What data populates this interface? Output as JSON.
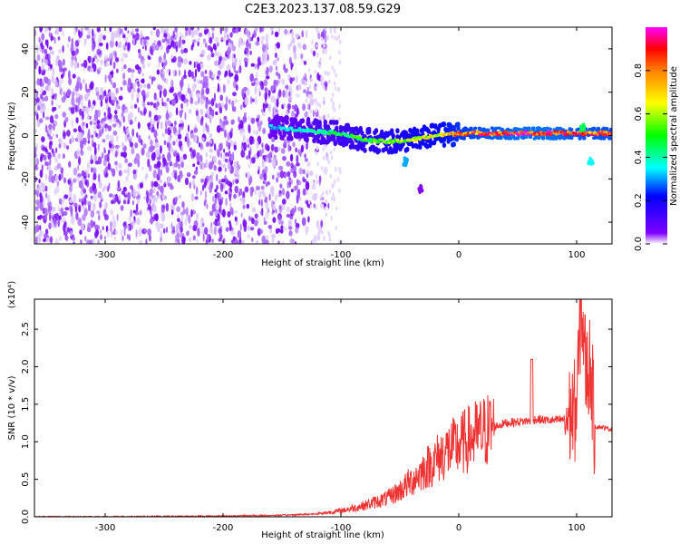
{
  "title": "C2E3.2023.137.08.59.G29",
  "chart_data": [
    {
      "type": "heatmap",
      "xlabel": "Height of straight line (km)",
      "ylabel": "Frequency (Hz)",
      "xlim": [
        -360,
        130
      ],
      "ylim": [
        -50,
        50
      ],
      "xticks": [
        -300,
        -200,
        -100,
        0,
        100
      ],
      "yticks": [
        -40,
        -20,
        0,
        20,
        40
      ],
      "colorbar": {
        "label": "Normalized spectral amplitude",
        "range": [
          0.0,
          1.0
        ],
        "ticks": [
          0.0,
          0.2,
          0.4,
          0.6,
          0.8
        ],
        "colormap": [
          "#ffffff",
          "#e0c8ff",
          "#8000ff",
          "#0000ff",
          "#00ffff",
          "#00ff00",
          "#ffff00",
          "#ff8000",
          "#ff0000",
          "#ff00ff"
        ]
      },
      "noise_region": {
        "x": [
          -360,
          -110
        ],
        "density": "high",
        "level": 0.15
      },
      "ridge": [
        {
          "x": -160,
          "y": 4,
          "level": 0.35
        },
        {
          "x": -140,
          "y": 3,
          "level": 0.4
        },
        {
          "x": -120,
          "y": 2,
          "level": 0.45
        },
        {
          "x": -100,
          "y": 1,
          "level": 0.5
        },
        {
          "x": -80,
          "y": -2,
          "level": 0.55
        },
        {
          "x": -60,
          "y": -3,
          "level": 0.6
        },
        {
          "x": -40,
          "y": -2,
          "level": 0.65
        },
        {
          "x": -20,
          "y": 0,
          "level": 0.7
        },
        {
          "x": 0,
          "y": 1,
          "level": 0.8
        },
        {
          "x": 20,
          "y": 1,
          "level": 0.85
        },
        {
          "x": 50,
          "y": 1,
          "level": 0.9
        },
        {
          "x": 80,
          "y": 1,
          "level": 0.9
        },
        {
          "x": 100,
          "y": 1,
          "level": 0.85
        },
        {
          "x": 130,
          "y": 1,
          "level": 0.85
        }
      ],
      "features": [
        {
          "x": -45,
          "y": -12,
          "level": 0.35
        },
        {
          "x": -32,
          "y": -25,
          "level": 0.1
        },
        {
          "x": 105,
          "y": 4,
          "level": 0.5
        },
        {
          "x": 112,
          "y": -12,
          "level": 0.4
        }
      ]
    },
    {
      "type": "line",
      "xlabel": "Height of straight line (km)",
      "ylabel": "SNR (10 * v/v)",
      "y_multiplier": "(x10⁴)",
      "xlim": [
        -360,
        130
      ],
      "ylim": [
        0,
        2.9
      ],
      "xticks": [
        -300,
        -200,
        -100,
        0,
        100
      ],
      "yticks": [
        0.0,
        0.5,
        1.0,
        1.5,
        2.0,
        2.5
      ],
      "series": [
        {
          "color": "#ee3333",
          "x": [
            -360,
            -300,
            -200,
            -150,
            -120,
            -100,
            -80,
            -60,
            -50,
            -40,
            -30,
            -20,
            -10,
            0,
            10,
            20,
            30,
            40,
            60,
            65,
            80,
            90,
            95,
            100,
            104,
            108,
            112,
            115,
            120,
            130
          ],
          "y": [
            0.0,
            0.0,
            0.01,
            0.02,
            0.04,
            0.08,
            0.15,
            0.25,
            0.35,
            0.48,
            0.62,
            0.75,
            0.88,
            0.95,
            1.05,
            1.12,
            1.2,
            1.25,
            1.28,
            1.3,
            1.28,
            1.3,
            1.35,
            1.45,
            2.9,
            1.9,
            2.05,
            1.2,
            1.2,
            1.16
          ]
        }
      ]
    }
  ]
}
